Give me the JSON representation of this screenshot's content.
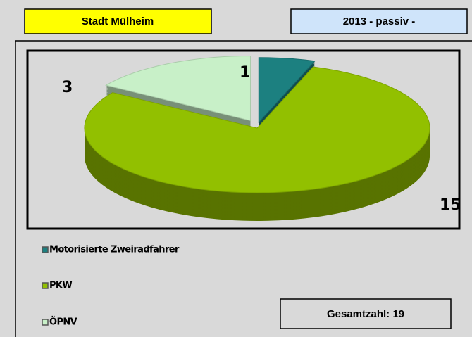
{
  "header": {
    "region": "Stadt Mülheim",
    "year": "2013 - passiv -"
  },
  "chart_data": {
    "type": "pie",
    "categories": [
      "Motorisierte Zweiradfahrer",
      "PKW",
      "ÖPNV"
    ],
    "values": [
      1,
      15,
      3
    ],
    "colors": [
      "#1c8080",
      "#92c000",
      "#c8f0c8"
    ],
    "legend": "bottom-left"
  },
  "total_label": "Gesamtzahl: 19"
}
